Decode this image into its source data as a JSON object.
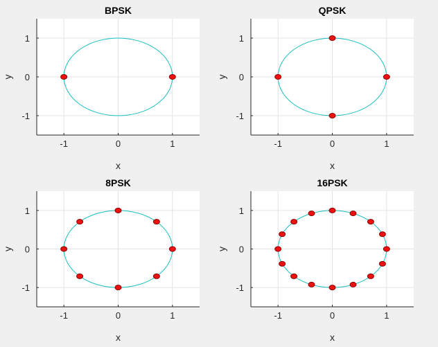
{
  "figure": {
    "background": "#f0f0f0",
    "circle_color": "#17bfbf",
    "marker_fill": "#ee1111",
    "marker_edge": "#8a0000"
  },
  "chart_data": [
    {
      "type": "scatter",
      "title": "BPSK",
      "xlabel": "x",
      "ylabel": "y",
      "xlim": [
        -1.5,
        1.5
      ],
      "ylim": [
        -1.5,
        1.5
      ],
      "xticks": [
        "-1",
        "0",
        "1"
      ],
      "yticks": [
        "-1",
        "0",
        "1"
      ],
      "grid": true,
      "reference_circle_radius": 1,
      "points": [
        [
          1,
          0
        ],
        [
          -1,
          0
        ]
      ]
    },
    {
      "type": "scatter",
      "title": "QPSK",
      "xlabel": "x",
      "ylabel": "y",
      "xlim": [
        -1.5,
        1.5
      ],
      "ylim": [
        -1.5,
        1.5
      ],
      "xticks": [
        "-1",
        "0",
        "1"
      ],
      "yticks": [
        "-1",
        "0",
        "1"
      ],
      "grid": true,
      "reference_circle_radius": 1,
      "points": [
        [
          1,
          0
        ],
        [
          0,
          1
        ],
        [
          -1,
          0
        ],
        [
          0,
          -1
        ]
      ]
    },
    {
      "type": "scatter",
      "title": "8PSK",
      "xlabel": "x",
      "ylabel": "y",
      "xlim": [
        -1.5,
        1.5
      ],
      "ylim": [
        -1.5,
        1.5
      ],
      "xticks": [
        "-1",
        "0",
        "1"
      ],
      "yticks": [
        "-1",
        "0",
        "1"
      ],
      "grid": true,
      "reference_circle_radius": 1,
      "points": [
        [
          1,
          0
        ],
        [
          0.707,
          0.707
        ],
        [
          0,
          1
        ],
        [
          -0.707,
          0.707
        ],
        [
          -1,
          0
        ],
        [
          -0.707,
          -0.707
        ],
        [
          0,
          -1
        ],
        [
          0.707,
          -0.707
        ]
      ]
    },
    {
      "type": "scatter",
      "title": "16PSK",
      "xlabel": "x",
      "ylabel": "y",
      "xlim": [
        -1.5,
        1.5
      ],
      "ylim": [
        -1.5,
        1.5
      ],
      "xticks": [
        "-1",
        "0",
        "1"
      ],
      "yticks": [
        "-1",
        "0",
        "1"
      ],
      "grid": true,
      "reference_circle_radius": 1,
      "points": [
        [
          1,
          0
        ],
        [
          0.924,
          0.383
        ],
        [
          0.707,
          0.707
        ],
        [
          0.383,
          0.924
        ],
        [
          0,
          1
        ],
        [
          -0.383,
          0.924
        ],
        [
          -0.707,
          0.707
        ],
        [
          -0.924,
          0.383
        ],
        [
          -1,
          0
        ],
        [
          -0.924,
          -0.383
        ],
        [
          -0.707,
          -0.707
        ],
        [
          -0.383,
          -0.924
        ],
        [
          0,
          -1
        ],
        [
          0.383,
          -0.924
        ],
        [
          0.707,
          -0.707
        ],
        [
          0.924,
          -0.383
        ]
      ]
    }
  ]
}
